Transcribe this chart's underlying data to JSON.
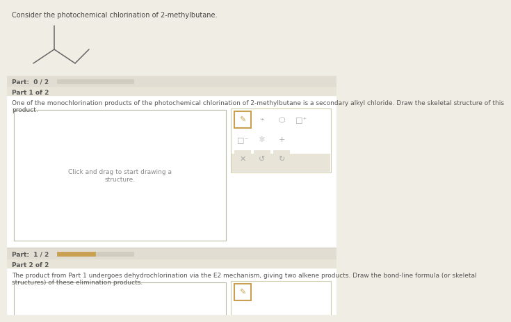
{
  "bg_color": "#f0ede4",
  "white": "#ffffff",
  "title_text": "Consider the photochemical chlorination of 2-methylbutane.",
  "title_fontsize": 7.0,
  "title_color": "#444444",
  "part_bar_bg": "#e2ddd2",
  "part_bar_fill": "#c8a050",
  "part_bar_empty": "#d0ccc0",
  "part_label_color": "#555555",
  "section_bg": "#e8e4d8",
  "part1_label": "Part:  0 / 2",
  "part2_label": "Part:  1 / 2",
  "part1_header": "Part 1 of 2",
  "part2_header": "Part 2 of 2",
  "part1_text": "One of the monochlorination products of the photochemical chlorination of 2-methylbutane is a secondary alkyl chloride. Draw the skeletal structure of this\nproduct.",
  "part2_text": "The product from Part 1 undergoes dehydrochlorination via the E2 mechanism, giving two alkene products. Draw the bond-line formula (or skeletal\nstructures) of these elimination products.",
  "draw_area_text": "Click and drag to start drawing a\nstructure.",
  "draw_text_color": "#888888",
  "border_color": "#bbbbaa",
  "icon_color": "#c8a050",
  "icon_bg": "#f0ede4",
  "icon_highlight_border": "#c8a050",
  "text_color": "#555555",
  "body_text_size": 6.5,
  "molecule_color": "#666666",
  "separator_color": "#ccccbb",
  "toolbar_bg": "#ffffff",
  "toolbar_border": "#ccccaa",
  "row3_bg": "#e8e4d8"
}
